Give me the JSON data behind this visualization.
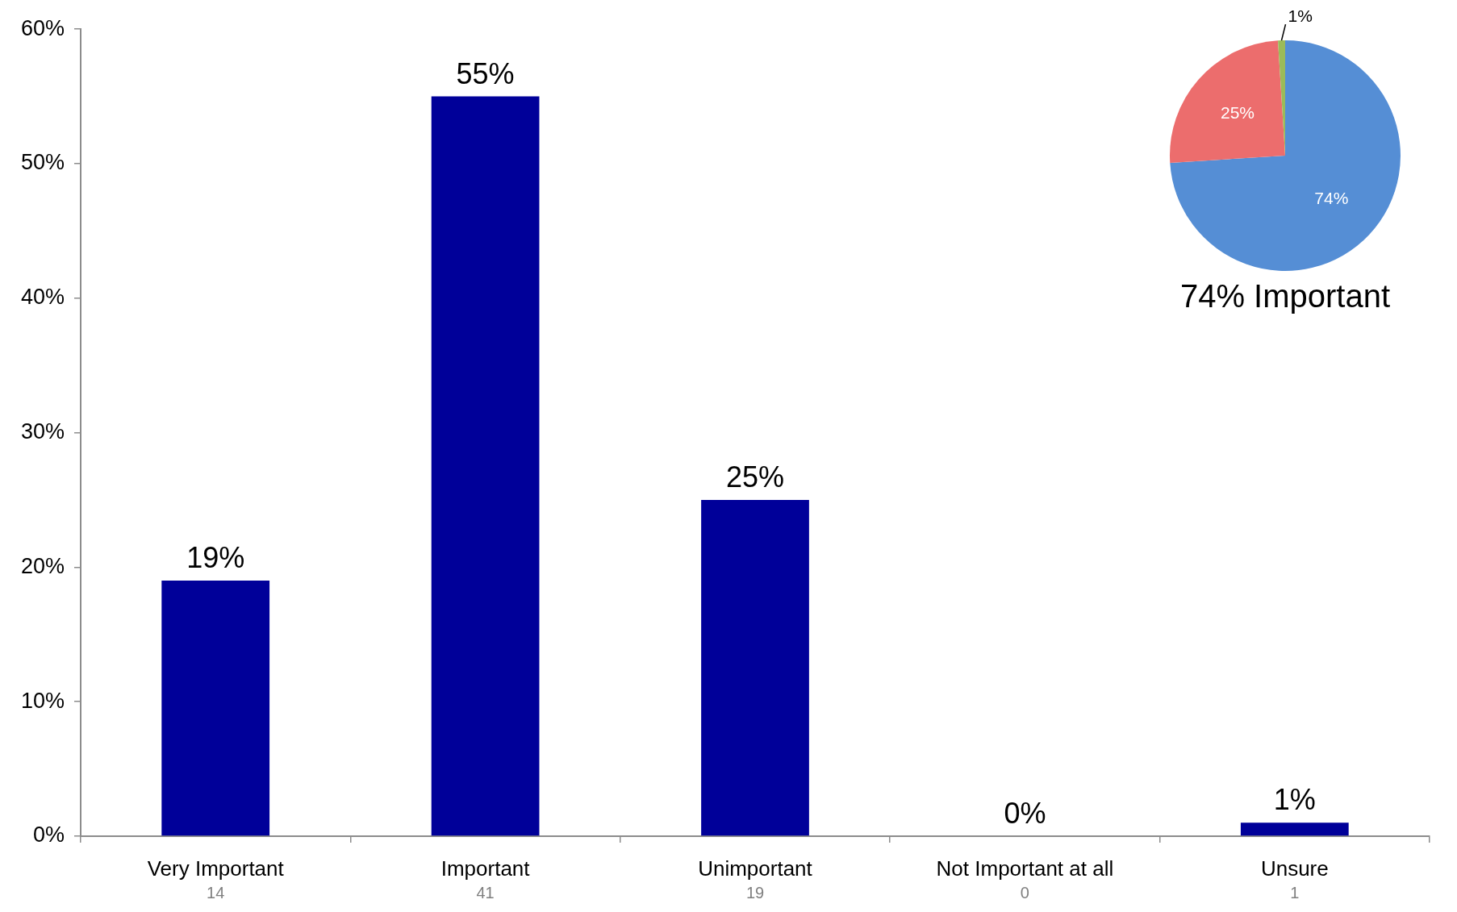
{
  "chart_data": [
    {
      "type": "bar",
      "categories": [
        "Very Important",
        "Important",
        "Unimportant",
        "Not Important at all",
        "Unsure"
      ],
      "values": [
        19,
        55,
        25,
        0,
        1
      ],
      "color": "#000099",
      "value_labels": [
        "19%",
        "55%",
        "25%",
        "0%",
        "1%"
      ],
      "ylim": [
        0,
        60
      ],
      "yticks": [
        {
          "value": 0,
          "label": "0%"
        },
        {
          "value": 10,
          "label": "10%"
        },
        {
          "value": 20,
          "label": "20%"
        },
        {
          "value": 30,
          "label": "30%"
        },
        {
          "value": 40,
          "label": "40%"
        },
        {
          "value": 50,
          "label": "50%"
        },
        {
          "value": 60,
          "label": "60%"
        }
      ],
      "grid": false,
      "annotations": [
        "14",
        "41",
        "19",
        "0",
        "1"
      ]
    },
    {
      "type": "pie",
      "title": "74% Important",
      "categories": [
        null,
        null,
        null
      ],
      "values": [
        74,
        25,
        1
      ],
      "colors": [
        "#558ed5",
        "#ec6d6d",
        "#9bbb59"
      ],
      "value_labels": [
        "74%",
        "25%",
        "1%"
      ]
    }
  ]
}
